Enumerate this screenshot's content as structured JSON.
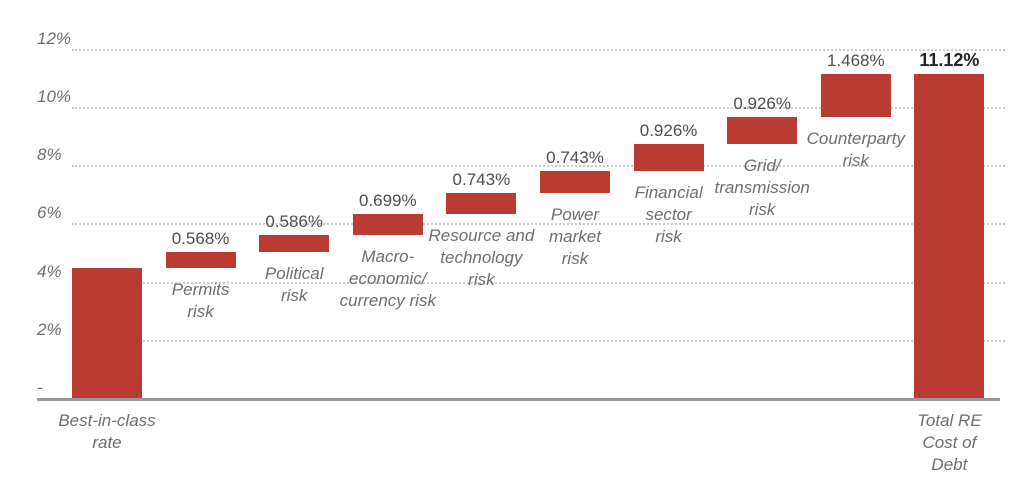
{
  "chart_data": {
    "type": "bar",
    "subtype": "waterfall",
    "title": "",
    "xlabel": "",
    "ylabel": "",
    "unit": "%",
    "ylim": [
      0,
      12
    ],
    "grid": "dotted horizontal gridlines at 2% intervals",
    "legend": "none",
    "yticks": [
      {
        "value": 12,
        "label": "12%"
      },
      {
        "value": 10,
        "label": "10%"
      },
      {
        "value": 8,
        "label": "8%"
      },
      {
        "value": 6,
        "label": "6%"
      },
      {
        "value": 4,
        "label": "4%"
      },
      {
        "value": 2,
        "label": "2%"
      },
      {
        "value": 0,
        "label": "-"
      }
    ],
    "bars": [
      {
        "kind": "base",
        "value": 4.461,
        "value_label": "",
        "label_lines": [
          "Best-in-class",
          "rate"
        ]
      },
      {
        "kind": "delta",
        "value": 0.568,
        "value_label": "0.568%",
        "label_lines": [
          "Permits",
          "risk"
        ]
      },
      {
        "kind": "delta",
        "value": 0.586,
        "value_label": "0.586%",
        "label_lines": [
          "Political",
          "risk"
        ]
      },
      {
        "kind": "delta",
        "value": 0.699,
        "value_label": "0.699%",
        "label_lines": [
          "Macro-",
          "economic/",
          "currency risk"
        ]
      },
      {
        "kind": "delta",
        "value": 0.743,
        "value_label": "0.743%",
        "label_lines": [
          "Resource and",
          "technology",
          "risk"
        ]
      },
      {
        "kind": "delta",
        "value": 0.743,
        "value_label": "0.743%",
        "label_lines": [
          "Power",
          "market",
          "risk"
        ]
      },
      {
        "kind": "delta",
        "value": 0.926,
        "value_label": "0.926%",
        "label_lines": [
          "Financial",
          "sector",
          "risk"
        ]
      },
      {
        "kind": "delta",
        "value": 0.926,
        "value_label": "0.926%",
        "label_lines": [
          "Grid/",
          "transmission",
          "risk"
        ]
      },
      {
        "kind": "delta",
        "value": 1.468,
        "value_label": "1.468%",
        "label_lines": [
          "Counterparty",
          "risk"
        ]
      },
      {
        "kind": "total",
        "value": 11.12,
        "value_label": "11.12%",
        "label_lines": [
          "Total RE",
          "Cost of",
          "Debt"
        ]
      }
    ],
    "colors": {
      "bar": "#B93B31",
      "value_label": "#4D4E50",
      "total_value_label": "#232426",
      "category_label": "#6D6E71",
      "axis_label": "#6D6E71",
      "gridline": "#C9CACC",
      "baseline": "#97999C",
      "background": "#FFFFFF"
    }
  }
}
